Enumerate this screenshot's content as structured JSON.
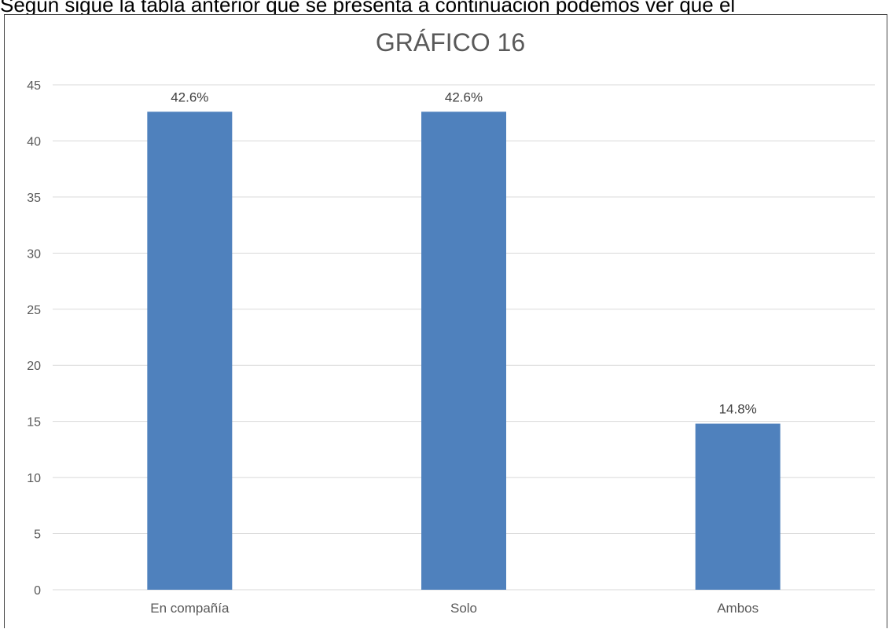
{
  "page": {
    "top_text": "Según sigue la tabla anterior que se presenta a continuación podemos ver que el"
  },
  "chart_data": {
    "type": "bar",
    "title": "GRÁFICO 16",
    "xlabel": "",
    "ylabel": "",
    "categories": [
      "En compañía",
      "Solo",
      "Ambos"
    ],
    "values": [
      42.6,
      42.6,
      14.8
    ],
    "data_labels": [
      "42.6%",
      "42.6%",
      "14.8%"
    ],
    "ylim": [
      0,
      45
    ],
    "yticks": [
      "0",
      "5",
      "10",
      "15",
      "20",
      "25",
      "30",
      "35",
      "40",
      "45"
    ],
    "grid": true,
    "legend": "none",
    "colors": {
      "bar": "#4F81BD",
      "grid": "#D9D9D9",
      "axis": "#D9D9D9",
      "text": "#595959",
      "title": "#595959"
    }
  }
}
